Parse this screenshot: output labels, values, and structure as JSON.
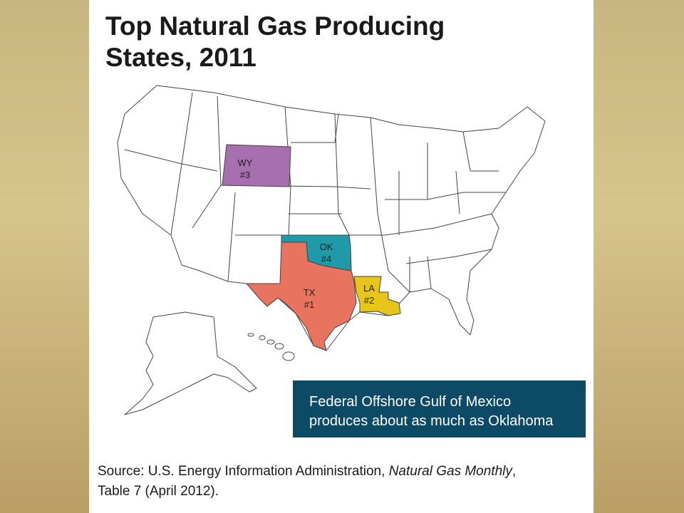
{
  "title_lines": [
    "Top Natural Gas Producing",
    "States, 2011"
  ],
  "states": [
    {
      "abbr": "WY",
      "rank": "#3"
    },
    {
      "abbr": "OK",
      "rank": "#4"
    },
    {
      "abbr": "TX",
      "rank": "#1"
    },
    {
      "abbr": "LA",
      "rank": "#2"
    }
  ],
  "callout_lines": [
    "Federal Offshore Gulf of Mexico",
    "produces about as much as Oklahoma"
  ],
  "source": {
    "prefix": "Source: U.S. Energy Information Administration,",
    "publication": "Natural Gas Monthly",
    "after": ",",
    "line2": "Table 7 (April 2012)."
  }
}
